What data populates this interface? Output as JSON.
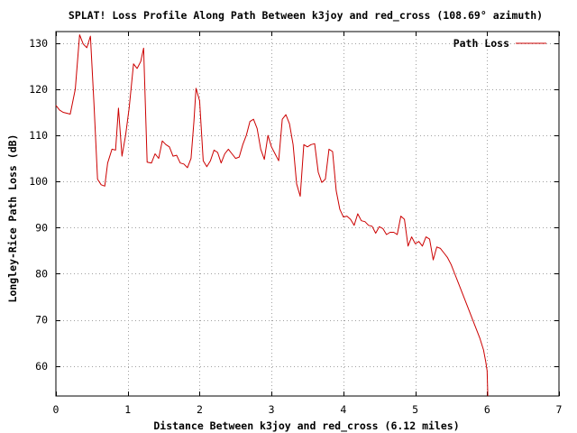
{
  "chart_data": {
    "type": "line",
    "title": "SPLAT! Loss Profile Along Path Between k3joy and red_cross (108.69° azimuth)",
    "xlabel": "Distance Between k3joy and red_cross (6.12 miles)",
    "ylabel": "Longley-Rice Path Loss (dB)",
    "xlim": [
      0,
      7
    ],
    "ylim": [
      53.5,
      132.5
    ],
    "x_ticks": [
      0,
      1,
      2,
      3,
      4,
      5,
      6,
      7
    ],
    "y_ticks": [
      60,
      70,
      80,
      90,
      100,
      110,
      120,
      130
    ],
    "x_tick_labels": [
      "0",
      "1",
      "2",
      "3",
      "4",
      "5",
      "6",
      "7"
    ],
    "y_tick_labels": [
      "60",
      "70",
      "80",
      "90",
      "100",
      "110",
      "120",
      "130"
    ],
    "grid": true,
    "legend_position": "top-right",
    "series": [
      {
        "name": "Path Loss",
        "color": "#cc0000",
        "x": [
          0.0,
          0.05,
          0.1,
          0.15,
          0.2,
          0.27,
          0.33,
          0.38,
          0.43,
          0.48,
          0.53,
          0.58,
          0.63,
          0.68,
          0.72,
          0.78,
          0.83,
          0.87,
          0.92,
          0.97,
          1.02,
          1.08,
          1.13,
          1.18,
          1.22,
          1.27,
          1.33,
          1.38,
          1.43,
          1.48,
          1.53,
          1.58,
          1.63,
          1.68,
          1.73,
          1.78,
          1.83,
          1.88,
          1.92,
          1.95,
          2.0,
          2.05,
          2.1,
          2.15,
          2.2,
          2.25,
          2.3,
          2.35,
          2.4,
          2.45,
          2.5,
          2.55,
          2.6,
          2.65,
          2.7,
          2.75,
          2.8,
          2.85,
          2.9,
          2.95,
          3.0,
          3.05,
          3.1,
          3.15,
          3.2,
          3.25,
          3.3,
          3.35,
          3.4,
          3.45,
          3.5,
          3.55,
          3.6,
          3.65,
          3.7,
          3.75,
          3.8,
          3.85,
          3.9,
          3.95,
          4.0,
          4.05,
          4.1,
          4.15,
          4.2,
          4.25,
          4.3,
          4.35,
          4.4,
          4.45,
          4.5,
          4.55,
          4.6,
          4.65,
          4.7,
          4.75,
          4.8,
          4.85,
          4.9,
          4.95,
          5.0,
          5.05,
          5.1,
          5.15,
          5.2,
          5.25,
          5.3,
          5.35,
          5.4,
          5.45,
          5.5,
          5.55,
          5.6,
          5.65,
          5.7,
          5.75,
          5.8,
          5.85,
          5.9,
          5.95,
          5.98,
          6.0,
          6.01
        ],
        "y": [
          116.5,
          115.5,
          115.0,
          114.8,
          114.6,
          120.0,
          131.8,
          129.8,
          129.0,
          131.5,
          117.0,
          100.5,
          99.3,
          99.0,
          104.0,
          107.0,
          106.8,
          115.9,
          105.5,
          110.0,
          116.0,
          125.5,
          124.5,
          126.0,
          128.9,
          104.2,
          104.0,
          106.0,
          105.0,
          108.8,
          108.0,
          107.5,
          105.5,
          105.7,
          104.0,
          103.8,
          103.0,
          105.0,
          113.0,
          120.2,
          117.5,
          104.5,
          103.2,
          104.5,
          106.8,
          106.3,
          104.0,
          106.0,
          107.0,
          106.0,
          105.0,
          105.3,
          108.0,
          110.0,
          113.0,
          113.5,
          111.5,
          107.0,
          104.8,
          110.0,
          107.5,
          106.0,
          104.5,
          113.5,
          114.5,
          112.5,
          108.0,
          99.5,
          96.8,
          108.0,
          107.5,
          108.0,
          108.2,
          102.0,
          99.8,
          100.5,
          107.0,
          106.5,
          98.0,
          94.0,
          92.3,
          92.5,
          91.8,
          90.5,
          93.0,
          91.5,
          91.3,
          90.5,
          90.3,
          88.8,
          90.2,
          89.8,
          88.5,
          89.0,
          89.0,
          88.5,
          92.5,
          91.8,
          86.0,
          88.0,
          86.5,
          87.0,
          86.0,
          88.0,
          87.5,
          83.0,
          85.8,
          85.5,
          84.5,
          83.5,
          82.0,
          80.0,
          78.0,
          76.0,
          74.0,
          72.0,
          70.0,
          68.0,
          66.0,
          63.5,
          61.0,
          59.0,
          53.5
        ]
      }
    ]
  }
}
